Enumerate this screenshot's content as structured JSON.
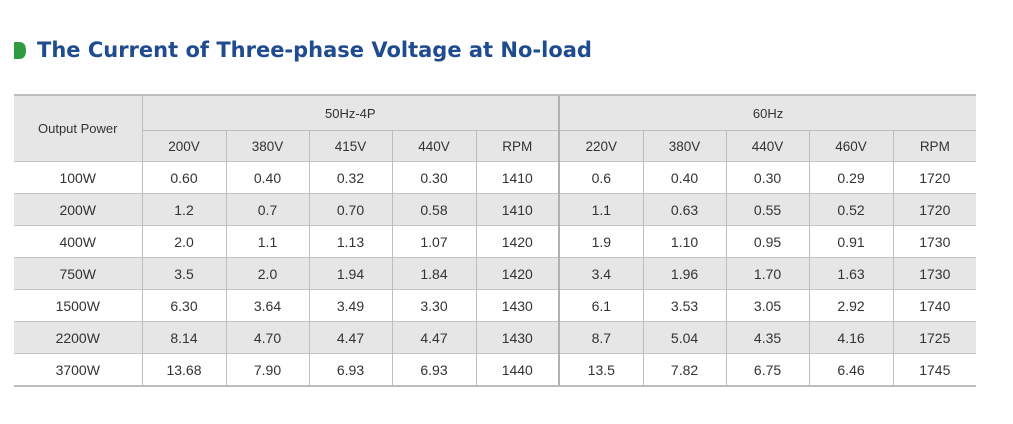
{
  "heading": {
    "title": "The Current of Three-phase Voltage at No-load",
    "marker_icon": "green-arrow-marker-icon",
    "title_color": "#1f4b8f",
    "marker_color": "#2e9b3e"
  },
  "table": {
    "row_header": "Output Power",
    "groups": [
      {
        "label": "50Hz-4P",
        "columns": [
          "200V",
          "380V",
          "415V",
          "440V",
          "RPM"
        ]
      },
      {
        "label": "60Hz",
        "columns": [
          "220V",
          "380V",
          "440V",
          "460V",
          "RPM"
        ]
      }
    ],
    "rows": [
      {
        "power": "100W",
        "values": [
          "0.60",
          "0.40",
          "0.32",
          "0.30",
          "1410",
          "0.6",
          "0.40",
          "0.30",
          "0.29",
          "1720"
        ]
      },
      {
        "power": "200W",
        "values": [
          "1.2",
          "0.7",
          "0.70",
          "0.58",
          "1410",
          "1.1",
          "0.63",
          "0.55",
          "0.52",
          "1720"
        ]
      },
      {
        "power": "400W",
        "values": [
          "2.0",
          "1.1",
          "1.13",
          "1.07",
          "1420",
          "1.9",
          "1.10",
          "0.95",
          "0.91",
          "1730"
        ]
      },
      {
        "power": "750W",
        "values": [
          "3.5",
          "2.0",
          "1.94",
          "1.84",
          "1420",
          "3.4",
          "1.96",
          "1.70",
          "1.63",
          "1730"
        ]
      },
      {
        "power": "1500W",
        "values": [
          "6.30",
          "3.64",
          "3.49",
          "3.30",
          "1430",
          "6.1",
          "3.53",
          "3.05",
          "2.92",
          "1740"
        ]
      },
      {
        "power": "2200W",
        "values": [
          "8.14",
          "4.70",
          "4.47",
          "4.47",
          "1430",
          "8.7",
          "5.04",
          "4.35",
          "4.16",
          "1725"
        ]
      },
      {
        "power": "3700W",
        "values": [
          "13.68",
          "7.90",
          "6.93",
          "6.93",
          "1440",
          "13.5",
          "7.82",
          "6.75",
          "6.46",
          "1745"
        ]
      }
    ],
    "stripe_color": "#e6e6e6"
  }
}
